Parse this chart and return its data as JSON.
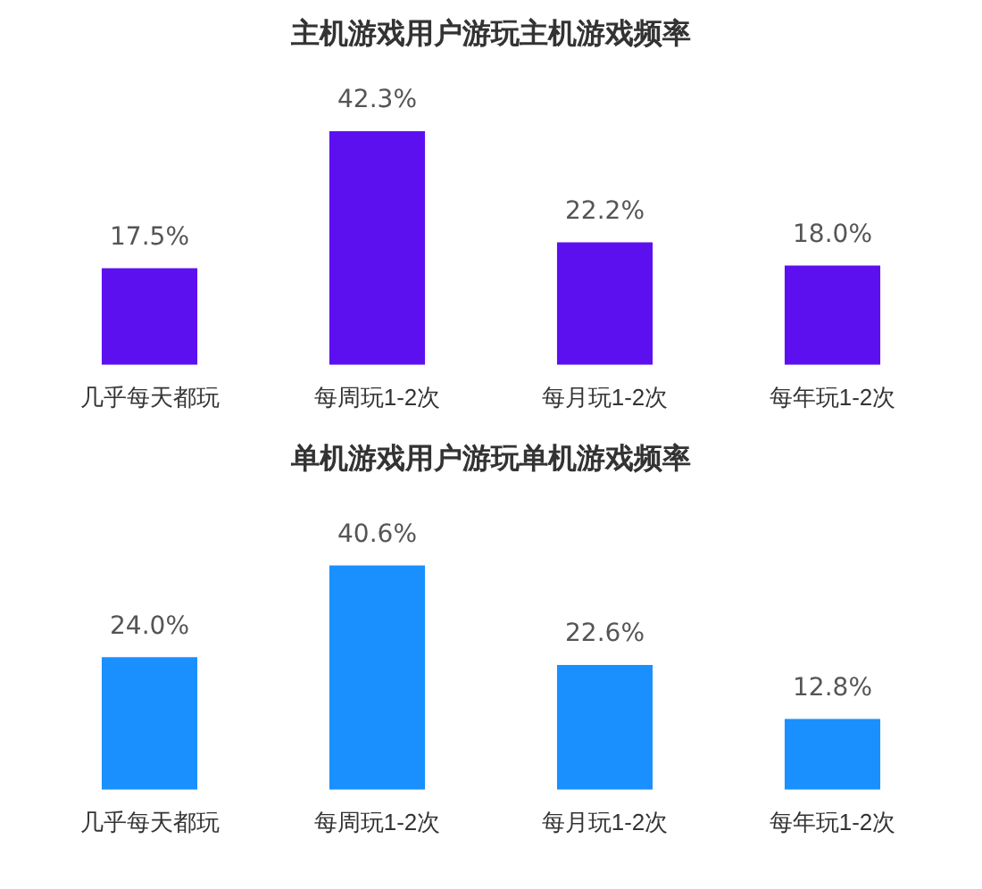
{
  "chart_data": [
    {
      "type": "bar",
      "title": "主机游戏用户游玩主机游戏频率",
      "categories": [
        "几乎每天都玩",
        "每周玩1-2次",
        "每月玩1-2次",
        "每年玩1-2次"
      ],
      "values": [
        17.5,
        42.3,
        22.2,
        18.0
      ],
      "value_labels": [
        "17.5%",
        "42.3%",
        "22.2%",
        "18.0%"
      ],
      "color": "#5c10f0"
    },
    {
      "type": "bar",
      "title": "单机游戏用户游玩单机游戏频率",
      "categories": [
        "几乎每天都玩",
        "每周玩1-2次",
        "每月玩1-2次",
        "每年玩1-2次"
      ],
      "values": [
        24.0,
        40.6,
        22.6,
        12.8
      ],
      "value_labels": [
        "24.0%",
        "40.6%",
        "22.6%",
        "12.8%"
      ],
      "color": "#1a90ff"
    }
  ]
}
